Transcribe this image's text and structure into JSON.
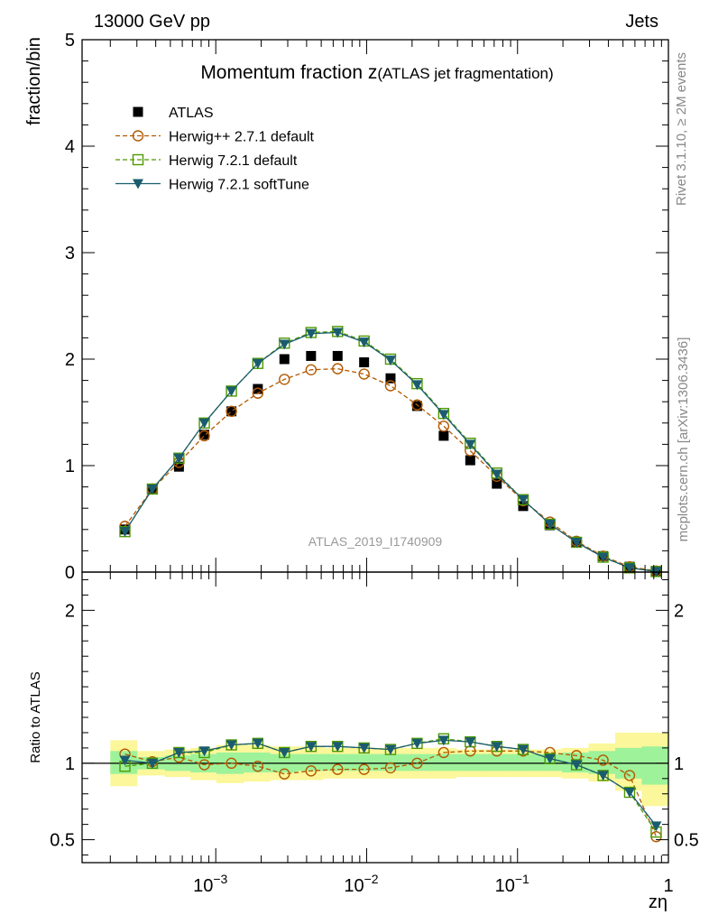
{
  "header": {
    "left": "13000 GeV pp",
    "right": "Jets"
  },
  "side_labels": {
    "rivet": "Rivet 3.1.10, ≥ 2M events",
    "mcplots": "mcplots.cern.ch [arXiv:1306.3436]"
  },
  "watermark": "ATLAS_2019_I1740909",
  "chart_data": [
    {
      "id": "main",
      "type": "scatter",
      "title_main": "Momentum fraction z",
      "title_sub": "(ATLAS jet fragmentation)",
      "xlabel": "zη",
      "ylabel": "fraction/bin",
      "xscale": "log",
      "xlim": [
        0.00013,
        1.0
      ],
      "ylim": [
        0,
        5
      ],
      "yticks": [
        "0",
        "1",
        "2",
        "3",
        "4",
        "5"
      ],
      "xtick_labels": [
        "10−3",
        "10−2",
        "10−1",
        "1"
      ],
      "legend_position": "top-left",
      "x": [
        0.00025,
        0.00038,
        0.00057,
        0.00084,
        0.00127,
        0.0019,
        0.00285,
        0.00428,
        0.00642,
        0.00962,
        0.0144,
        0.0216,
        0.0324,
        0.0486,
        0.0729,
        0.109,
        0.164,
        0.246,
        0.369,
        0.553,
        0.83
      ],
      "series": [
        {
          "name": "ATLAS",
          "color": "#000000",
          "marker": "square-filled",
          "values": [
            0.4,
            0.78,
            0.99,
            1.29,
            1.51,
            1.72,
            2.0,
            2.03,
            2.03,
            1.97,
            1.82,
            1.56,
            1.28,
            1.05,
            0.83,
            0.62,
            0.44,
            0.28,
            0.15,
            0.05,
            0.01
          ]
        },
        {
          "name": "Herwig++ 2.7.1 default",
          "color": "#b35900",
          "marker": "circle-open",
          "line": "dashed",
          "values": [
            0.43,
            0.78,
            1.03,
            1.28,
            1.51,
            1.68,
            1.81,
            1.9,
            1.91,
            1.86,
            1.75,
            1.57,
            1.37,
            1.14,
            0.9,
            0.67,
            0.47,
            0.29,
            0.15,
            0.05,
            0.01
          ]
        },
        {
          "name": "Herwig 7.2.1 default",
          "color": "#4d9900",
          "marker": "square-open",
          "line": "dashed",
          "values": [
            0.38,
            0.78,
            1.07,
            1.4,
            1.7,
            1.96,
            2.15,
            2.25,
            2.26,
            2.17,
            2.0,
            1.77,
            1.49,
            1.21,
            0.93,
            0.68,
            0.45,
            0.28,
            0.14,
            0.04,
            0.005
          ]
        },
        {
          "name": "Herwig 7.2.1 softTune",
          "color": "#1a5c6e",
          "marker": "triangle-down-filled",
          "line": "solid",
          "values": [
            0.38,
            0.78,
            1.07,
            1.4,
            1.7,
            1.96,
            2.14,
            2.24,
            2.25,
            2.16,
            1.99,
            1.76,
            1.48,
            1.2,
            0.92,
            0.68,
            0.45,
            0.28,
            0.14,
            0.04,
            0.005
          ]
        }
      ]
    },
    {
      "id": "ratio",
      "type": "scatter",
      "ylabel": "Ratio to ATLAS",
      "xscale": "log",
      "xlim": [
        0.00013,
        1.0
      ],
      "ylim": [
        0.35,
        2.25
      ],
      "yticks": [
        "0.5",
        "1",
        "2"
      ],
      "band_edges": [
        0.0002,
        0.0003,
        0.00046,
        0.00068,
        0.00101,
        0.00152,
        0.00228,
        0.00342,
        0.00513,
        0.0077,
        0.01155,
        0.01732,
        0.02598,
        0.03897,
        0.05846,
        0.08769,
        0.1315,
        0.1973,
        0.296,
        0.444,
        0.666,
        1.0
      ],
      "band_yellow": [
        [
          0.85,
          1.15
        ],
        [
          0.92,
          1.08
        ],
        [
          0.91,
          1.09
        ],
        [
          0.89,
          1.1
        ],
        [
          0.87,
          1.12
        ],
        [
          0.88,
          1.12
        ],
        [
          0.89,
          1.11
        ],
        [
          0.89,
          1.11
        ],
        [
          0.9,
          1.1
        ],
        [
          0.9,
          1.1
        ],
        [
          0.9,
          1.1
        ],
        [
          0.9,
          1.1
        ],
        [
          0.9,
          1.1
        ],
        [
          0.91,
          1.09
        ],
        [
          0.91,
          1.09
        ],
        [
          0.91,
          1.09
        ],
        [
          0.91,
          1.09
        ],
        [
          0.9,
          1.1
        ],
        [
          0.88,
          1.13
        ],
        [
          0.82,
          1.2
        ],
        [
          0.72,
          1.2
        ]
      ],
      "band_green": [
        [
          0.93,
          1.08
        ],
        [
          0.96,
          1.04
        ],
        [
          0.95,
          1.05
        ],
        [
          0.94,
          1.06
        ],
        [
          0.93,
          1.07
        ],
        [
          0.94,
          1.07
        ],
        [
          0.94,
          1.06
        ],
        [
          0.95,
          1.06
        ],
        [
          0.95,
          1.06
        ],
        [
          0.95,
          1.06
        ],
        [
          0.95,
          1.06
        ],
        [
          0.95,
          1.06
        ],
        [
          0.95,
          1.06
        ],
        [
          0.95,
          1.06
        ],
        [
          0.95,
          1.06
        ],
        [
          0.95,
          1.06
        ],
        [
          0.95,
          1.06
        ],
        [
          0.94,
          1.07
        ],
        [
          0.93,
          1.08
        ],
        [
          0.9,
          1.1
        ],
        [
          0.86,
          1.11
        ]
      ],
      "series": [
        {
          "name": "Herwig++ 2.7.1 default",
          "color": "#b35900",
          "marker": "circle-open",
          "line": "dashed",
          "values": [
            1.06,
            1.01,
            1.04,
            0.99,
            1.0,
            0.98,
            0.93,
            0.95,
            0.96,
            0.96,
            0.97,
            1.0,
            1.07,
            1.08,
            1.08,
            1.08,
            1.07,
            1.05,
            1.02,
            0.92,
            0.52
          ]
        },
        {
          "name": "Herwig 7.2.1 default",
          "color": "#4d9900",
          "marker": "square-open",
          "line": "dashed",
          "values": [
            0.98,
            1.0,
            1.07,
            1.07,
            1.12,
            1.13,
            1.07,
            1.11,
            1.11,
            1.1,
            1.09,
            1.13,
            1.16,
            1.14,
            1.11,
            1.09,
            1.03,
            0.99,
            0.92,
            0.81,
            0.55
          ]
        },
        {
          "name": "Herwig 7.2.1 softTune",
          "color": "#1a5c6e",
          "marker": "triangle-down-filled",
          "line": "solid",
          "values": [
            1.02,
            1.0,
            1.07,
            1.08,
            1.12,
            1.13,
            1.07,
            1.11,
            1.11,
            1.1,
            1.09,
            1.13,
            1.15,
            1.14,
            1.11,
            1.09,
            1.03,
            0.99,
            0.92,
            0.81,
            0.59
          ]
        }
      ]
    }
  ]
}
